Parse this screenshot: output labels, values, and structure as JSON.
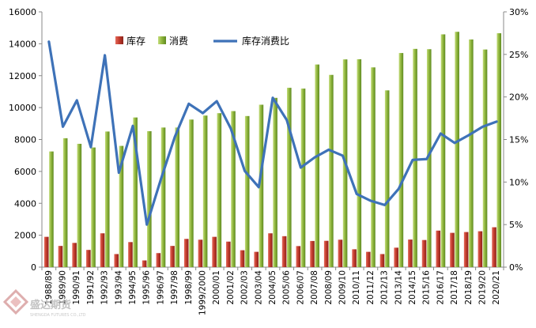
{
  "chart_data": {
    "type": "bar+line",
    "categories": [
      "1988/89",
      "1989/90",
      "1990/91",
      "1991/92",
      "1992/93",
      "1993/94",
      "1994/95",
      "1995/96",
      "1996/97",
      "1997/98",
      "1998/99",
      "1999/2000",
      "2000/01",
      "2001/02",
      "2002/03",
      "2003/04",
      "2004/05",
      "2005/06",
      "2006/07",
      "2007/08",
      "2008/09",
      "2009/10",
      "2010/11",
      "2011/12",
      "2012/13",
      "2013/14",
      "2014/15",
      "2015/16",
      "2016/17",
      "2017/18",
      "2018/19",
      "2019/20",
      "2020/21"
    ],
    "series": [
      {
        "name": "库存",
        "type": "bar",
        "axis": "left",
        "color": "#c0392b",
        "values": [
          1900,
          1330,
          1520,
          1080,
          2120,
          820,
          1570,
          420,
          880,
          1330,
          1770,
          1720,
          1900,
          1600,
          1060,
          960,
          2120,
          1940,
          1320,
          1640,
          1650,
          1720,
          1120,
          960,
          820,
          1220,
          1730,
          1700,
          2290,
          2150,
          2200,
          2250,
          2500
        ]
      },
      {
        "name": "消费",
        "type": "bar",
        "axis": "left",
        "color": "#8db33a",
        "values": [
          7250,
          8080,
          7730,
          7500,
          8500,
          7600,
          9380,
          8520,
          8750,
          8750,
          9250,
          9500,
          9650,
          9780,
          9470,
          10180,
          10610,
          11240,
          11190,
          12700,
          12050,
          13020,
          13030,
          12520,
          11080,
          13420,
          13680,
          13660,
          14590,
          14750,
          14270,
          13640,
          14660
        ]
      },
      {
        "name": "库存消费比",
        "type": "line",
        "axis": "right",
        "color": "#3e72b8",
        "values": [
          26.5,
          16.5,
          19.6,
          14.1,
          24.9,
          11.1,
          16.6,
          5.0,
          10.3,
          15.3,
          19.2,
          18.1,
          19.5,
          16.3,
          11.3,
          9.4,
          19.9,
          17.3,
          11.7,
          12.9,
          13.8,
          13.1,
          8.6,
          7.8,
          7.3,
          9.2,
          12.6,
          12.7,
          15.7,
          14.6,
          15.5,
          16.5,
          17.1
        ]
      }
    ],
    "left_axis": {
      "min": 0,
      "max": 16000,
      "step": 2000
    },
    "right_axis": {
      "min": 0,
      "max": 30,
      "step": 5,
      "unit": "%"
    },
    "legend": {
      "position": "top-left",
      "items": [
        "库存",
        "消费",
        "库存消费比"
      ]
    },
    "grid": false
  },
  "watermark": {
    "name": "盛达期货",
    "sub": "SHENGDA FUTURES CO.,LTD"
  }
}
